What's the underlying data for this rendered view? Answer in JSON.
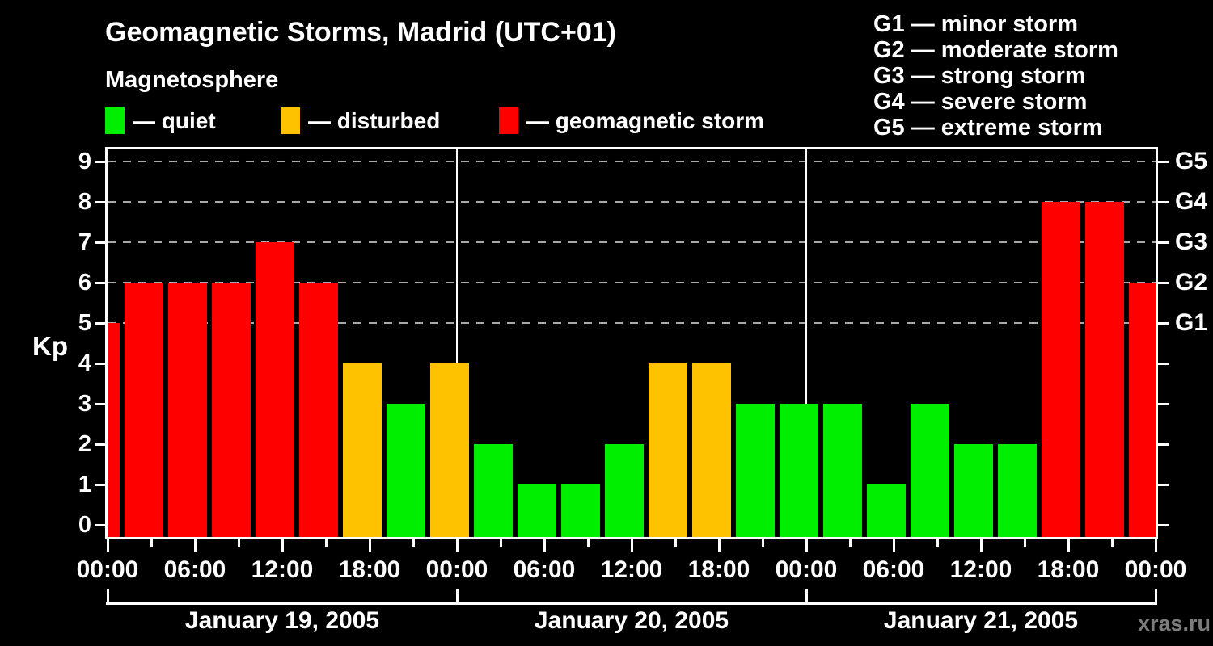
{
  "watermark": "xras.ru",
  "colors": {
    "background": "#000000",
    "text": "#ffffff",
    "quiet": "#00ee00",
    "disturbed": "#ffc200",
    "storm": "#ff0000",
    "grid": "#a9a9a9",
    "frame": "#ffffff",
    "watermark_text": "#7d7d7d"
  },
  "chart_data": {
    "type": "bar",
    "title": "Geomagnetic Storms, Madrid (UTC+01)",
    "subtitle": "Magnetosphere",
    "ylabel": "Kp",
    "ylim": [
      0,
      9
    ],
    "y_ticks": [
      0,
      1,
      2,
      3,
      4,
      5,
      6,
      7,
      8,
      9
    ],
    "gridlines_at_kp": [
      5,
      6,
      7,
      8,
      9
    ],
    "grid_style": "dashed horizontal lines at Kp 5-9 only",
    "interval_hours": 3,
    "legend": [
      {
        "status": "quiet",
        "label": "— quiet",
        "color": "#00ee00"
      },
      {
        "status": "disturbed",
        "label": "— disturbed",
        "color": "#ffc200"
      },
      {
        "status": "storm",
        "label": "— geomagnetic storm",
        "color": "#ff0000"
      }
    ],
    "g_levels": [
      {
        "axis_label": "G1",
        "kp": 5,
        "legend_text": "G1 — minor storm"
      },
      {
        "axis_label": "G2",
        "kp": 6,
        "legend_text": "G2 — moderate storm"
      },
      {
        "axis_label": "G3",
        "kp": 7,
        "legend_text": "G3 — strong storm"
      },
      {
        "axis_label": "G4",
        "kp": 8,
        "legend_text": "G4 — severe storm"
      },
      {
        "axis_label": "G5",
        "kp": 9,
        "legend_text": "G5 — extreme storm"
      }
    ],
    "x_tick_labels": [
      "00:00",
      "06:00",
      "12:00",
      "18:00",
      "00:00",
      "06:00",
      "12:00",
      "18:00",
      "00:00",
      "06:00",
      "12:00",
      "18:00",
      "00:00"
    ],
    "days": [
      "January 19, 2005",
      "January 20, 2005",
      "January 21, 2005"
    ],
    "points": [
      {
        "time": "Jan 19, 00:00",
        "kp": 5,
        "status": "storm"
      },
      {
        "time": "Jan 19, 03:00",
        "kp": 6,
        "status": "storm"
      },
      {
        "time": "Jan 19, 06:00",
        "kp": 6,
        "status": "storm"
      },
      {
        "time": "Jan 19, 09:00",
        "kp": 6,
        "status": "storm"
      },
      {
        "time": "Jan 19, 12:00",
        "kp": 7,
        "status": "storm"
      },
      {
        "time": "Jan 19, 15:00",
        "kp": 6,
        "status": "storm"
      },
      {
        "time": "Jan 19, 18:00",
        "kp": 4,
        "status": "disturbed"
      },
      {
        "time": "Jan 19, 21:00",
        "kp": 3,
        "status": "quiet"
      },
      {
        "time": "Jan 20, 00:00",
        "kp": 4,
        "status": "disturbed"
      },
      {
        "time": "Jan 20, 03:00",
        "kp": 2,
        "status": "quiet"
      },
      {
        "time": "Jan 20, 06:00",
        "kp": 1,
        "status": "quiet"
      },
      {
        "time": "Jan 20, 09:00",
        "kp": 1,
        "status": "quiet"
      },
      {
        "time": "Jan 20, 12:00",
        "kp": 2,
        "status": "quiet"
      },
      {
        "time": "Jan 20, 15:00",
        "kp": 4,
        "status": "disturbed"
      },
      {
        "time": "Jan 20, 18:00",
        "kp": 4,
        "status": "disturbed"
      },
      {
        "time": "Jan 20, 21:00",
        "kp": 3,
        "status": "quiet"
      },
      {
        "time": "Jan 21, 00:00",
        "kp": 3,
        "status": "quiet"
      },
      {
        "time": "Jan 21, 03:00",
        "kp": 3,
        "status": "quiet"
      },
      {
        "time": "Jan 21, 06:00",
        "kp": 1,
        "status": "quiet"
      },
      {
        "time": "Jan 21, 09:00",
        "kp": 3,
        "status": "quiet"
      },
      {
        "time": "Jan 21, 12:00",
        "kp": 2,
        "status": "quiet"
      },
      {
        "time": "Jan 21, 15:00",
        "kp": 2,
        "status": "quiet"
      },
      {
        "time": "Jan 21, 18:00",
        "kp": 8,
        "status": "storm"
      },
      {
        "time": "Jan 21, 21:00",
        "kp": 8,
        "status": "storm"
      },
      {
        "time": "Jan 22, 00:00",
        "kp": 6,
        "status": "storm"
      }
    ]
  }
}
